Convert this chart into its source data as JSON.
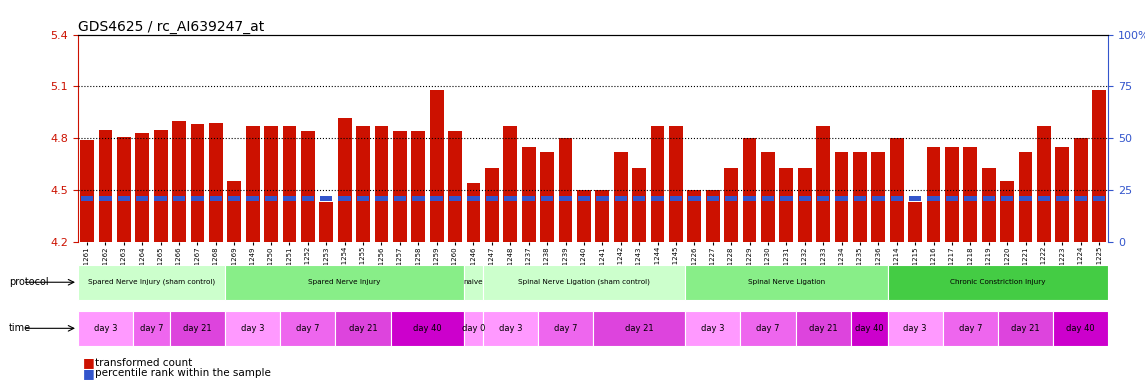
{
  "title": "GDS4625 / rc_AI639247_at",
  "ylim": [
    4.2,
    5.4
  ],
  "yticks_left": [
    4.2,
    4.5,
    4.8,
    5.1,
    5.4
  ],
  "hlines": [
    4.5,
    4.8,
    5.1
  ],
  "bar_color": "#cc1100",
  "percentile_color": "#3355cc",
  "samples": [
    "GSM761261",
    "GSM761262",
    "GSM761263",
    "GSM761264",
    "GSM761265",
    "GSM761266",
    "GSM761267",
    "GSM761268",
    "GSM761269",
    "GSM761249",
    "GSM761250",
    "GSM761251",
    "GSM761252",
    "GSM761253",
    "GSM761254",
    "GSM761255",
    "GSM761256",
    "GSM761257",
    "GSM761258",
    "GSM761259",
    "GSM761260",
    "GSM761246",
    "GSM761247",
    "GSM761248",
    "GSM761237",
    "GSM761238",
    "GSM761239",
    "GSM761240",
    "GSM761241",
    "GSM761242",
    "GSM761243",
    "GSM761244",
    "GSM761245",
    "GSM761226",
    "GSM761227",
    "GSM761228",
    "GSM761229",
    "GSM761230",
    "GSM761231",
    "GSM761232",
    "GSM761233",
    "GSM761234",
    "GSM761235",
    "GSM761236",
    "GSM761214",
    "GSM761215",
    "GSM761216",
    "GSM761217",
    "GSM761218",
    "GSM761219",
    "GSM761220",
    "GSM761221",
    "GSM761222",
    "GSM761223",
    "GSM761224",
    "GSM761225"
  ],
  "values": [
    4.79,
    4.85,
    4.81,
    4.83,
    4.85,
    4.9,
    4.88,
    4.89,
    4.55,
    4.87,
    4.87,
    4.87,
    4.84,
    4.43,
    4.92,
    4.87,
    4.87,
    4.84,
    4.84,
    5.08,
    4.84,
    4.54,
    4.63,
    4.87,
    4.75,
    4.72,
    4.8,
    4.5,
    4.5,
    4.72,
    4.63,
    4.87,
    4.87,
    4.5,
    4.5,
    4.63,
    4.8,
    4.72,
    4.63,
    4.63,
    4.87,
    4.72,
    4.72,
    4.72,
    4.8,
    4.43,
    4.75,
    4.75,
    4.75,
    4.63,
    4.55,
    4.72,
    4.87,
    4.75,
    4.8,
    5.08
  ],
  "percentile_vals": [
    4.45,
    4.45,
    4.45,
    4.45,
    4.45,
    4.45,
    4.45,
    4.45,
    4.45,
    4.45,
    4.45,
    4.45,
    4.45,
    4.45,
    4.45,
    4.45,
    4.45,
    4.45,
    4.45,
    4.45,
    4.45,
    4.45,
    4.45,
    4.45,
    4.45,
    4.45,
    4.45,
    4.45,
    4.45,
    4.45,
    4.45,
    4.45,
    4.45,
    4.45,
    4.45,
    4.45,
    4.45,
    4.45,
    4.45,
    4.45,
    4.45,
    4.45,
    4.45,
    4.45,
    4.45,
    4.45,
    4.45,
    4.45,
    4.45,
    4.45,
    4.45,
    4.45,
    4.45,
    4.45,
    4.45,
    4.45
  ],
  "protocol_groups": [
    {
      "label": "Spared Nerve Injury (sham control)",
      "start": 0,
      "end": 8,
      "color": "#ccffcc"
    },
    {
      "label": "Spared Nerve Injury",
      "start": 8,
      "end": 21,
      "color": "#88ee88"
    },
    {
      "label": "naive",
      "start": 21,
      "end": 22,
      "color": "#ccffcc"
    },
    {
      "label": "Spinal Nerve Ligation (sham control)",
      "start": 22,
      "end": 33,
      "color": "#ccffcc"
    },
    {
      "label": "Spinal Nerve Ligation",
      "start": 33,
      "end": 44,
      "color": "#88ee88"
    },
    {
      "label": "Chronic Constriction Injury",
      "start": 44,
      "end": 56,
      "color": "#44cc44"
    }
  ],
  "time_groups": [
    {
      "label": "day 3",
      "start": 0,
      "end": 3,
      "color": "#ff99ff"
    },
    {
      "label": "day 7",
      "start": 3,
      "end": 5,
      "color": "#ee66ee"
    },
    {
      "label": "day 21",
      "start": 5,
      "end": 8,
      "color": "#dd44dd"
    },
    {
      "label": "day 3",
      "start": 8,
      "end": 11,
      "color": "#ff99ff"
    },
    {
      "label": "day 7",
      "start": 11,
      "end": 14,
      "color": "#ee66ee"
    },
    {
      "label": "day 21",
      "start": 14,
      "end": 17,
      "color": "#dd44dd"
    },
    {
      "label": "day 40",
      "start": 17,
      "end": 21,
      "color": "#cc00cc"
    },
    {
      "label": "day 0",
      "start": 21,
      "end": 22,
      "color": "#ff99ff"
    },
    {
      "label": "day 3",
      "start": 22,
      "end": 25,
      "color": "#ff99ff"
    },
    {
      "label": "day 7",
      "start": 25,
      "end": 28,
      "color": "#ee66ee"
    },
    {
      "label": "day 21",
      "start": 28,
      "end": 33,
      "color": "#dd44dd"
    },
    {
      "label": "day 3",
      "start": 33,
      "end": 36,
      "color": "#ff99ff"
    },
    {
      "label": "day 7",
      "start": 36,
      "end": 39,
      "color": "#ee66ee"
    },
    {
      "label": "day 21",
      "start": 39,
      "end": 42,
      "color": "#dd44dd"
    },
    {
      "label": "day 40",
      "start": 42,
      "end": 44,
      "color": "#cc00cc"
    },
    {
      "label": "day 3",
      "start": 44,
      "end": 47,
      "color": "#ff99ff"
    },
    {
      "label": "day 7",
      "start": 47,
      "end": 50,
      "color": "#ee66ee"
    },
    {
      "label": "day 21",
      "start": 50,
      "end": 53,
      "color": "#dd44dd"
    },
    {
      "label": "day 40",
      "start": 53,
      "end": 56,
      "color": "#cc00cc"
    }
  ],
  "left_axis_color": "#cc1100",
  "right_axis_color": "#3355cc",
  "bar_bottom": 4.2,
  "right_ticks": [
    4.2,
    4.5,
    4.8,
    5.1,
    5.4
  ],
  "right_labels": [
    "0",
    "25",
    "50",
    "75",
    "100%"
  ]
}
